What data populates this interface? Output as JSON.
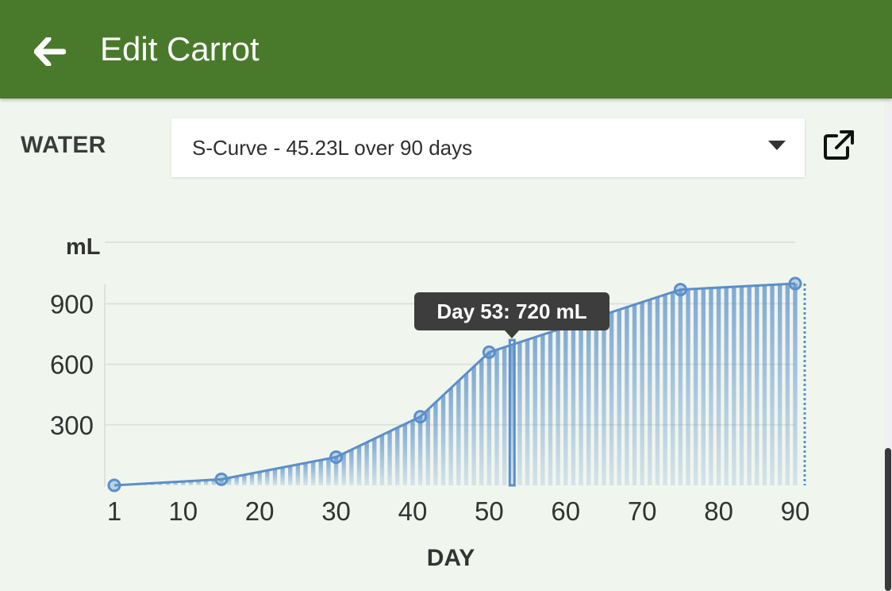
{
  "appbar": {
    "title": "Edit Carrot",
    "back_icon": "arrow-left-icon"
  },
  "water": {
    "label": "WATER",
    "selected_curve": "S-Curve - 45.23L over 90 days",
    "dropdown_icon": "caret-down-icon",
    "external_icon": "external-link-icon"
  },
  "colors": {
    "appbar": "#497a2b",
    "series": "#5b8fca",
    "background": "#f0f6ee"
  },
  "chart_data": {
    "type": "area",
    "ylabel": "mL",
    "xlabel": "DAY",
    "ylim": [
      0,
      1000
    ],
    "xlim": [
      1,
      90
    ],
    "yticks": [
      300,
      600,
      900
    ],
    "xticks": [
      1,
      10,
      20,
      30,
      40,
      50,
      60,
      70,
      80,
      90
    ],
    "grid": true,
    "series": [
      {
        "points": [
          {
            "x": 1,
            "y": 0
          },
          {
            "x": 15,
            "y": 30
          },
          {
            "x": 30,
            "y": 140
          },
          {
            "x": 41,
            "y": 340
          },
          {
            "x": 50,
            "y": 660
          },
          {
            "x": 75,
            "y": 970
          },
          {
            "x": 90,
            "y": 1000
          }
        ]
      }
    ],
    "highlight": {
      "x": 53,
      "y": 720
    },
    "tooltip": "Day 53: 720 mL"
  }
}
